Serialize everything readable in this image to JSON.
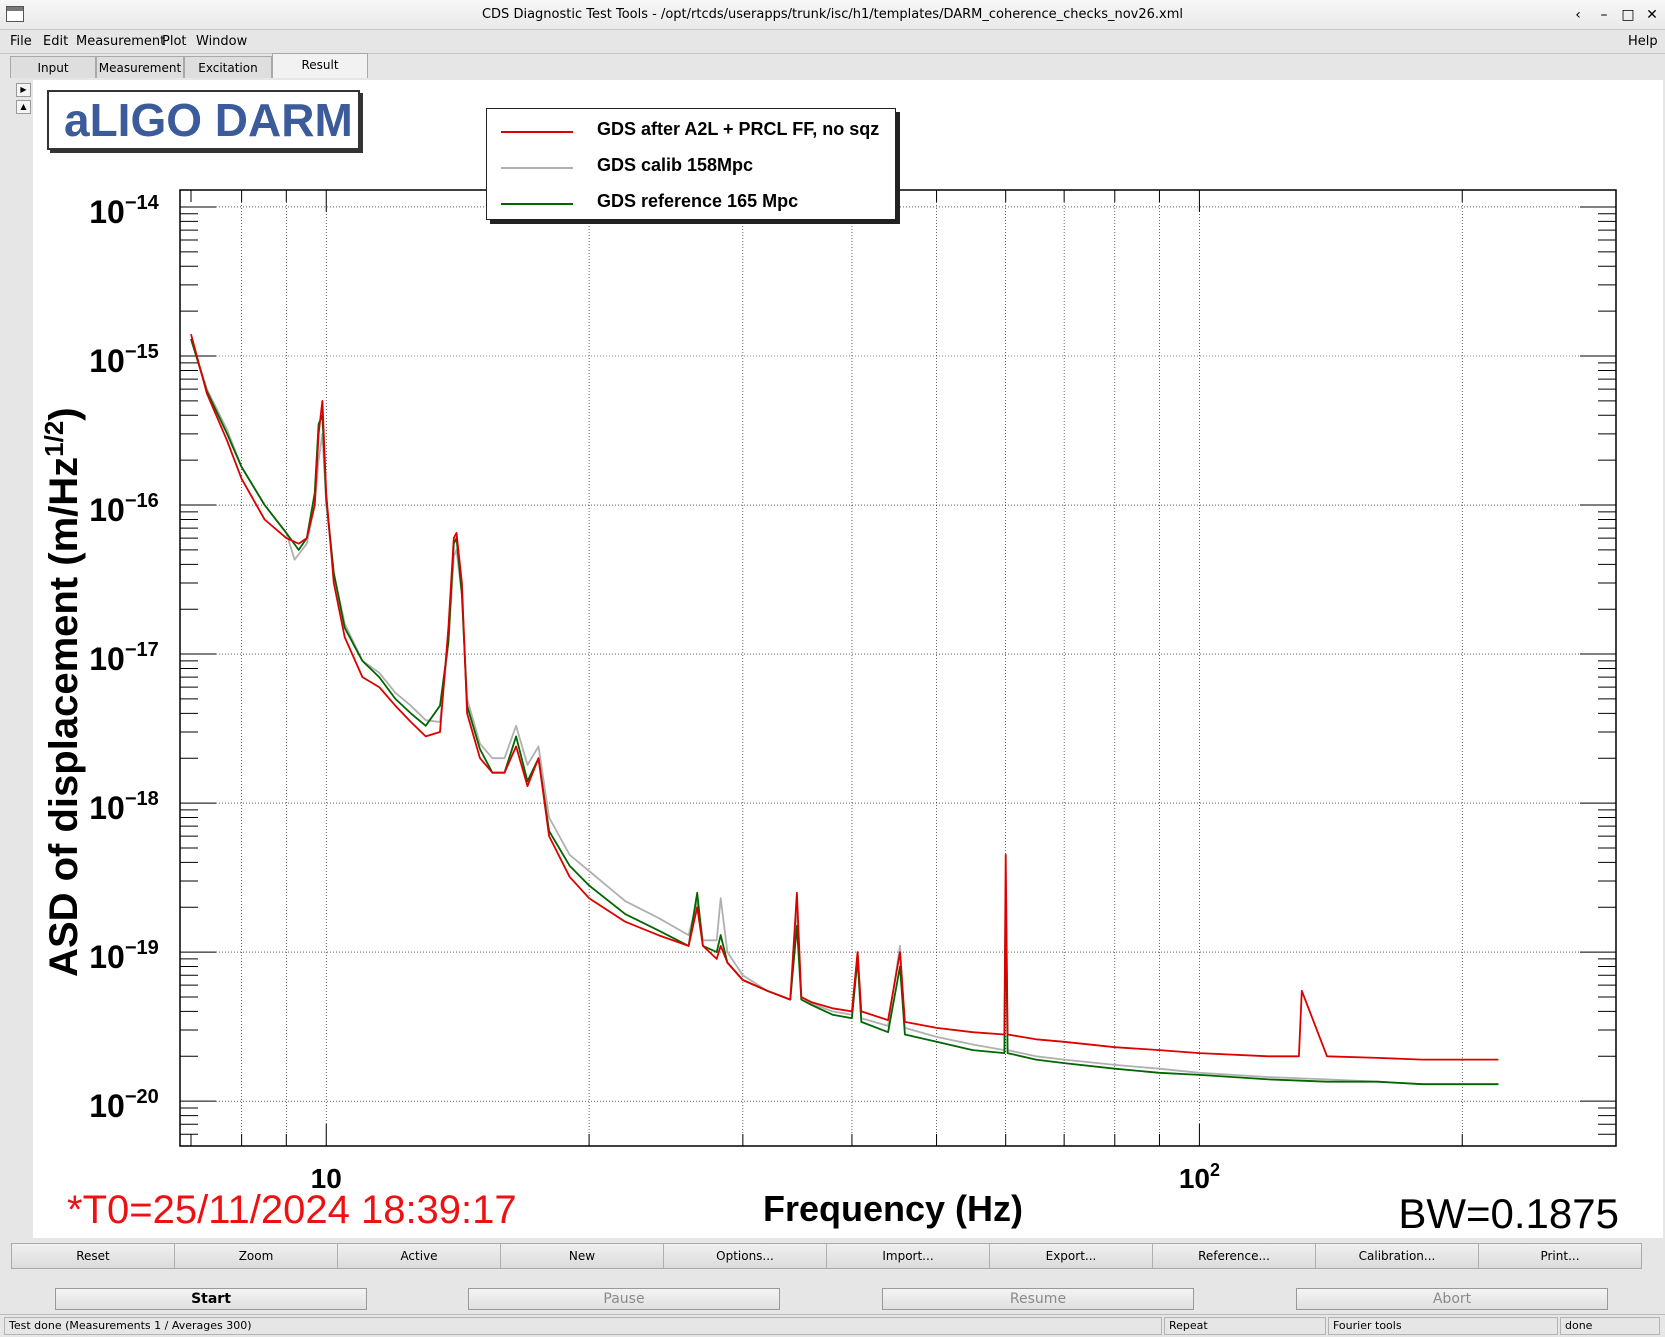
{
  "window": {
    "title": "CDS Diagnostic Test Tools - /opt/rtcds/userapps/trunk/isc/h1/templates/DARM_coherence_checks_nov26.xml",
    "controls": [
      "‹",
      "–",
      "□",
      "✕"
    ]
  },
  "menu": {
    "items": [
      "File",
      "Edit",
      "Measurement",
      "Plot",
      "Window"
    ],
    "help": "Help"
  },
  "tabs": [
    "Input",
    "Measurement",
    "Excitation",
    "Result"
  ],
  "active_tab": "Result",
  "plot": {
    "logo": "aLIGO DARM",
    "legend": [
      {
        "label": "GDS after A2L + PRCL FF, no sqz",
        "color": "#dd0000"
      },
      {
        "label": "GDS calib 158Mpc",
        "color": "#b0b0b0"
      },
      {
        "label": "GDS reference 165 Mpc",
        "color": "#006600"
      }
    ],
    "t0": "*T0=25/11/2024 18:39:17",
    "bw": "BW=0.1875",
    "xlabel": "Frequency (Hz)",
    "ylabel": "ASD of displacement (m/Hz"
  },
  "chart_data": {
    "type": "line",
    "xscale": "log",
    "yscale": "log",
    "xlim": [
      6.8,
      300
    ],
    "ylim": [
      5e-21,
      1.3e-14
    ],
    "xlabel": "Frequency (Hz)",
    "ylabel": "ASD of displacement (m/Hz^1/2)",
    "x_tick_labels": [
      "10",
      "10^2"
    ],
    "y_tick_labels": [
      "10^-14",
      "10^-15",
      "10^-16",
      "10^-17",
      "10^-18",
      "10^-19",
      "10^-20"
    ],
    "grid": true,
    "legend_position": "top-center",
    "series": [
      {
        "name": "GDS after A2L + PRCL FF, no sqz",
        "color": "#dd0000",
        "x": [
          7,
          7.3,
          7.7,
          8,
          8.5,
          9,
          9.3,
          9.5,
          9.7,
          9.8,
          9.9,
          10,
          10.2,
          10.5,
          11,
          11.5,
          12,
          12.5,
          13,
          13.5,
          13.8,
          14,
          14.1,
          14.3,
          14.5,
          15,
          15.5,
          16,
          16.5,
          17,
          17.5,
          18,
          19,
          20,
          22,
          24,
          26,
          26.6,
          27,
          28,
          28.3,
          28.8,
          30,
          32,
          34,
          34.6,
          35,
          36,
          38,
          40,
          40.6,
          41,
          44,
          45.4,
          46,
          50,
          55,
          59.8,
          60,
          60.3,
          65,
          70,
          80,
          90,
          100,
          120,
          130,
          131,
          140,
          160,
          180,
          190,
          200,
          210,
          220
        ],
        "values": [
          1.4e-15,
          5.6e-16,
          2.7e-16,
          1.5e-16,
          8e-17,
          6e-17,
          5.5e-17,
          6e-17,
          1e-16,
          3e-16,
          5e-16,
          1.2e-16,
          3e-17,
          1.3e-17,
          7e-18,
          6e-18,
          4.5e-18,
          3.5e-18,
          2.8e-18,
          3e-18,
          1.5e-17,
          6e-17,
          6.5e-17,
          3e-17,
          4e-18,
          2e-18,
          1.6e-18,
          1.6e-18,
          2.4e-18,
          1.3e-18,
          2e-18,
          6e-19,
          3.2e-19,
          2.3e-19,
          1.6e-19,
          1.3e-19,
          1.1e-19,
          2e-19,
          1.1e-19,
          9e-20,
          1.1e-19,
          8.5e-20,
          6.5e-20,
          5.5e-20,
          4.8e-20,
          2.5e-19,
          5e-20,
          4.6e-20,
          4.2e-20,
          4e-20,
          1e-19,
          4e-20,
          3.5e-20,
          1e-19,
          3.4e-20,
          3.1e-20,
          2.9e-20,
          2.8e-20,
          4.5e-19,
          2.8e-20,
          2.6e-20,
          2.5e-20,
          2.3e-20,
          2.2e-20,
          2.1e-20,
          2e-20,
          2e-20,
          5.5e-20,
          2e-20,
          1.95e-20,
          1.9e-20,
          1.9e-20,
          1.9e-20,
          1.9e-20,
          1.9e-20
        ]
      },
      {
        "name": "GDS calib 158Mpc",
        "color": "#b0b0b0",
        "x": [
          7,
          7.3,
          7.7,
          8,
          8.5,
          9,
          9.2,
          9.5,
          9.7,
          9.8,
          9.9,
          10,
          10.2,
          10.5,
          11,
          11.5,
          12,
          12.5,
          13,
          13.5,
          13.8,
          14,
          14.1,
          14.3,
          14.5,
          15,
          15.5,
          16,
          16.5,
          17,
          17.5,
          18,
          19,
          20,
          22,
          24,
          26,
          26.6,
          27,
          28,
          28.3,
          28.8,
          30,
          32,
          34,
          34.6,
          35,
          36,
          38,
          40,
          40.6,
          41,
          44,
          45.4,
          46,
          50,
          55,
          59.8,
          60,
          60.3,
          65,
          70,
          80,
          90,
          100,
          120,
          140,
          160,
          180,
          200,
          210,
          220
        ],
        "values": [
          1.3e-15,
          6e-16,
          3.2e-16,
          1.8e-16,
          1e-16,
          6.5e-17,
          4.3e-17,
          5.5e-17,
          1e-16,
          2e-16,
          3e-16,
          1e-16,
          3.5e-17,
          1.6e-17,
          9e-18,
          7.5e-18,
          5.5e-18,
          4.5e-18,
          3.6e-18,
          3.5e-18,
          1.2e-17,
          4.5e-17,
          5e-17,
          2.5e-17,
          5e-18,
          2.5e-18,
          2e-18,
          2e-18,
          3.3e-18,
          1.8e-18,
          2.4e-18,
          8e-19,
          4.5e-19,
          3.5e-19,
          2.2e-19,
          1.7e-19,
          1.3e-19,
          2.2e-19,
          1.2e-19,
          1.2e-19,
          2.3e-19,
          1e-19,
          7e-20,
          5.5e-20,
          4.8e-20,
          2e-19,
          5e-20,
          4.5e-20,
          4e-20,
          3.8e-20,
          1e-19,
          3.6e-20,
          3.2e-20,
          1.1e-19,
          3.1e-20,
          2.7e-20,
          2.4e-20,
          2.2e-20,
          3e-19,
          2.2e-20,
          2e-20,
          1.9e-20,
          1.75e-20,
          1.65e-20,
          1.55e-20,
          1.45e-20,
          1.4e-20,
          1.35e-20,
          1.3e-20,
          1.3e-20,
          1.3e-20,
          1.3e-20
        ]
      },
      {
        "name": "GDS reference 165 Mpc",
        "color": "#006600",
        "x": [
          7,
          7.3,
          7.7,
          8,
          8.5,
          9,
          9.3,
          9.5,
          9.7,
          9.8,
          9.9,
          10,
          10.2,
          10.5,
          11,
          11.5,
          12,
          12.5,
          13,
          13.5,
          13.8,
          14,
          14.1,
          14.3,
          14.5,
          15,
          15.5,
          16,
          16.5,
          17,
          17.5,
          18,
          19,
          20,
          22,
          24,
          26,
          26.6,
          27,
          28,
          28.3,
          28.8,
          30,
          32,
          34,
          34.6,
          35,
          36,
          38,
          40,
          40.6,
          41,
          44,
          45.4,
          46,
          50,
          55,
          59.8,
          60,
          60.3,
          65,
          70,
          80,
          90,
          100,
          120,
          140,
          160,
          180,
          200,
          210,
          220
        ],
        "values": [
          1.3e-15,
          5.8e-16,
          3e-16,
          1.8e-16,
          1e-16,
          6.5e-17,
          5e-17,
          6e-17,
          1.2e-16,
          3.5e-16,
          4e-16,
          1.1e-16,
          3.5e-17,
          1.5e-17,
          9e-18,
          7e-18,
          5e-18,
          4e-18,
          3.3e-18,
          4.5e-18,
          1.2e-17,
          5.5e-17,
          6e-17,
          2.5e-17,
          4.5e-18,
          2.3e-18,
          1.6e-18,
          1.6e-18,
          2.8e-18,
          1.4e-18,
          2e-18,
          6.5e-19,
          3.8e-19,
          2.8e-19,
          1.8e-19,
          1.4e-19,
          1.1e-19,
          2.5e-19,
          1.1e-19,
          1e-19,
          1.3e-19,
          8.5e-20,
          6.5e-20,
          5.5e-20,
          4.8e-20,
          1.5e-19,
          4.8e-20,
          4.4e-20,
          3.8e-20,
          3.6e-20,
          9e-20,
          3.4e-20,
          2.9e-20,
          8e-20,
          2.8e-20,
          2.5e-20,
          2.2e-20,
          2.1e-20,
          2.5e-19,
          2.1e-20,
          1.9e-20,
          1.8e-20,
          1.65e-20,
          1.55e-20,
          1.5e-20,
          1.4e-20,
          1.35e-20,
          1.35e-20,
          1.3e-20,
          1.3e-20,
          1.3e-20,
          1.3e-20
        ]
      }
    ]
  },
  "buttons_row1": [
    "Reset",
    "Zoom",
    "Active",
    "New",
    "Options...",
    "Import...",
    "Export...",
    "Reference...",
    "Calibration...",
    "Print..."
  ],
  "buttons_row2": [
    {
      "label": "Start",
      "enabled": true
    },
    {
      "label": "Pause",
      "enabled": false
    },
    {
      "label": "Resume",
      "enabled": false
    },
    {
      "label": "Abort",
      "enabled": false
    }
  ],
  "status": {
    "message": "Test done (Measurements 1 / Averages 300)",
    "mode": "Repeat",
    "tool": "Fourier tools",
    "state": "done"
  }
}
